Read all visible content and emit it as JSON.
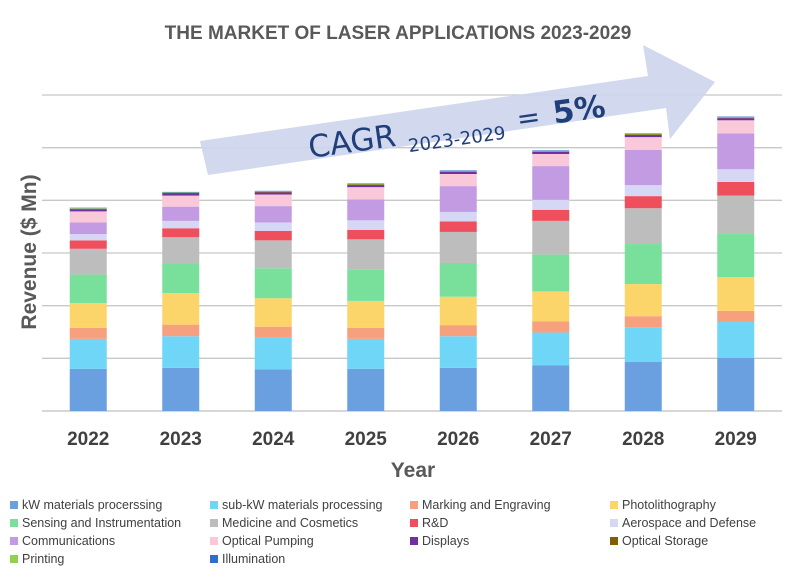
{
  "chart_data": {
    "type": "bar",
    "stacked": true,
    "title": "THE MARKET OF LASER APPLICATIONS 2023-2029",
    "xlabel": "Year",
    "ylabel": "Revenue ($ Mn)",
    "categories": [
      "2022",
      "2023",
      "2024",
      "2025",
      "2026",
      "2027",
      "2028",
      "2029"
    ],
    "ylim": [
      0,
      6
    ],
    "grid": true,
    "legend_position": "bottom",
    "annotation": {
      "prefix": "CAGR",
      "subscript": "2023-2029",
      "equals": "=",
      "value": "5%"
    },
    "series": [
      {
        "name": "kW materials procerssing",
        "color": "#6a9fe0",
        "values": [
          0.8,
          0.82,
          0.79,
          0.8,
          0.82,
          0.87,
          0.93,
          1.01
        ]
      },
      {
        "name": "sub-kW materials processing",
        "color": "#6fd6f7",
        "values": [
          0.57,
          0.6,
          0.6,
          0.57,
          0.6,
          0.62,
          0.66,
          0.68
        ]
      },
      {
        "name": "Marking and Engraving",
        "color": "#f7a07e",
        "values": [
          0.21,
          0.22,
          0.21,
          0.21,
          0.21,
          0.21,
          0.21,
          0.21
        ]
      },
      {
        "name": "Photolithography",
        "color": "#fcd56a",
        "values": [
          0.47,
          0.6,
          0.54,
          0.51,
          0.54,
          0.57,
          0.61,
          0.64
        ]
      },
      {
        "name": "Sensing and Instrumentation",
        "color": "#79e09c",
        "values": [
          0.54,
          0.56,
          0.57,
          0.59,
          0.64,
          0.7,
          0.76,
          0.82
        ]
      },
      {
        "name": "Medicine and Cosmetics",
        "color": "#bdbdbd",
        "values": [
          0.49,
          0.5,
          0.53,
          0.58,
          0.59,
          0.64,
          0.68,
          0.73
        ]
      },
      {
        "name": "R&D",
        "color": "#ef4e5c",
        "values": [
          0.16,
          0.17,
          0.18,
          0.18,
          0.2,
          0.21,
          0.23,
          0.26
        ]
      },
      {
        "name": "Aerospace and Defense",
        "color": "#d6d6f5",
        "values": [
          0.12,
          0.14,
          0.16,
          0.18,
          0.18,
          0.19,
          0.21,
          0.24
        ]
      },
      {
        "name": "Communications",
        "color": "#c29be3",
        "values": [
          0.22,
          0.27,
          0.31,
          0.4,
          0.49,
          0.64,
          0.67,
          0.68
        ]
      },
      {
        "name": "Optical Pumping",
        "color": "#f9c9da",
        "values": [
          0.21,
          0.21,
          0.22,
          0.23,
          0.23,
          0.23,
          0.24,
          0.25
        ]
      },
      {
        "name": "Displays",
        "color": "#7030a0",
        "values": [
          0.04,
          0.04,
          0.04,
          0.04,
          0.04,
          0.04,
          0.04,
          0.04
        ]
      },
      {
        "name": "Optical Storage",
        "color": "#7f6000",
        "values": [
          0.01,
          0.01,
          0.01,
          0.01,
          0.01,
          0.01,
          0.01,
          0.01
        ]
      },
      {
        "name": "Printing",
        "color": "#92d050",
        "values": [
          0.01,
          0.01,
          0.01,
          0.01,
          0.01,
          0.01,
          0.01,
          0.01
        ]
      },
      {
        "name": "Illumination",
        "color": "#2f6ed0",
        "values": [
          0.01,
          0.01,
          0.01,
          0.01,
          0.01,
          0.01,
          0.01,
          0.01
        ]
      }
    ]
  }
}
